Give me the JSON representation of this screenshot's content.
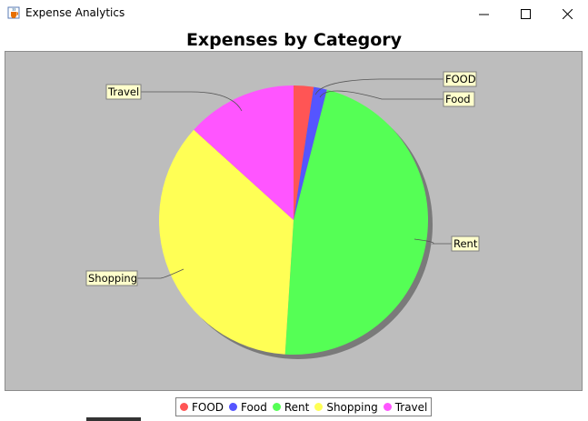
{
  "window": {
    "title": "Expense Analytics",
    "icon": "java-cup-icon",
    "controls": [
      "minimize-icon",
      "maximize-icon",
      "close-icon"
    ]
  },
  "chart_data": {
    "type": "pie",
    "title": "Expenses by Category",
    "categories": [
      "FOOD",
      "Food",
      "Rent",
      "Shopping",
      "Travel"
    ],
    "values": [
      2.4,
      1.6,
      47.0,
      35.7,
      13.3
    ],
    "colors": [
      "#ff5555",
      "#5555ff",
      "#55ff55",
      "#ffff55",
      "#ff55ff"
    ],
    "legend": [
      "FOOD",
      "Food",
      "Rent",
      "Shopping",
      "Travel"
    ],
    "legend_position": "bottom",
    "plot_background": "#bdbdbd",
    "label_background": "#ffffcc"
  }
}
